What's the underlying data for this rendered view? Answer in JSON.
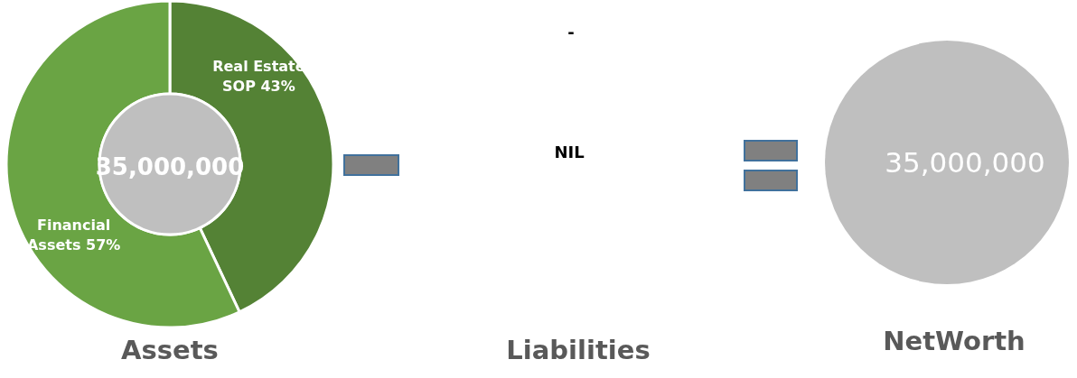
{
  "chart_data": [
    {
      "type": "donut",
      "title": "Assets",
      "categories": [
        "Real Estate SOP",
        "Financial Assets"
      ],
      "values": [
        43,
        57
      ],
      "colors": [
        "#548235",
        "#6aa444"
      ],
      "value_labels": [
        "43%",
        "57%"
      ],
      "annotations": [
        "35,000,000"
      ]
    },
    {
      "type": "other",
      "title": "Liabilities",
      "annotations": [
        "-",
        "NIL"
      ]
    },
    {
      "type": "other",
      "title": "NetWorth",
      "annotations": [
        "35,000,000"
      ]
    }
  ]
}
